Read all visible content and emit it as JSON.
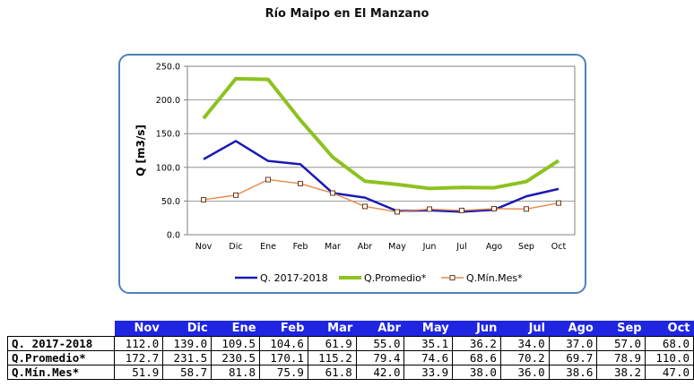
{
  "chart_data": {
    "type": "line",
    "title": "Río Maipo en El Manzano",
    "ylabel": "Q [m3/s]",
    "xlabel": "",
    "categories": [
      "Nov",
      "Dic",
      "Ene",
      "Feb",
      "Mar",
      "Abr",
      "May",
      "Jun",
      "Jul",
      "Ago",
      "Sep",
      "Oct"
    ],
    "ylim": [
      0,
      250
    ],
    "yticks": [
      "0.0",
      "50.0",
      "100.0",
      "150.0",
      "200.0",
      "250.0"
    ],
    "grid": true,
    "legend": "bottom",
    "series": [
      {
        "name": "Q. 2017-2018",
        "color": "#1a1ab4",
        "marker": "none",
        "values": [
          112.0,
          139.0,
          109.5,
          104.6,
          61.9,
          55.0,
          35.1,
          36.2,
          34.0,
          37.0,
          57.0,
          68.0
        ]
      },
      {
        "name": "Q.Promedio*",
        "color": "#8dc21f",
        "marker": "none",
        "values": [
          172.7,
          231.5,
          230.5,
          170.1,
          115.2,
          79.4,
          74.6,
          68.6,
          70.2,
          69.7,
          78.9,
          110.0
        ]
      },
      {
        "name": "Q.Mín.Mes*",
        "color": "#e8884a",
        "marker": "square",
        "values": [
          51.9,
          58.7,
          81.8,
          75.9,
          61.8,
          42.0,
          33.9,
          38.0,
          36.0,
          38.6,
          38.2,
          47.0
        ]
      }
    ]
  },
  "table": {
    "headers": [
      "Nov",
      "Dic",
      "Ene",
      "Feb",
      "Mar",
      "Abr",
      "May",
      "Jun",
      "Jul",
      "Ago",
      "Sep",
      "Oct"
    ],
    "rows": [
      {
        "label": "Q. 2017-2018",
        "cells": [
          "112.0",
          "139.0",
          "109.5",
          "104.6",
          "61.9",
          "55.0",
          "35.1",
          "36.2",
          "34.0",
          "37.0",
          "57.0",
          "68.0"
        ]
      },
      {
        "label": "Q.Promedio*",
        "cells": [
          "172.7",
          "231.5",
          "230.5",
          "170.1",
          "115.2",
          "79.4",
          "74.6",
          "68.6",
          "70.2",
          "69.7",
          "78.9",
          "110.0"
        ]
      },
      {
        "label": "Q.Mín.Mes*",
        "cells": [
          "51.9",
          "58.7",
          "81.8",
          "75.9",
          "61.8",
          "42.0",
          "33.9",
          "38.0",
          "36.0",
          "38.6",
          "38.2",
          "47.0"
        ]
      }
    ]
  }
}
